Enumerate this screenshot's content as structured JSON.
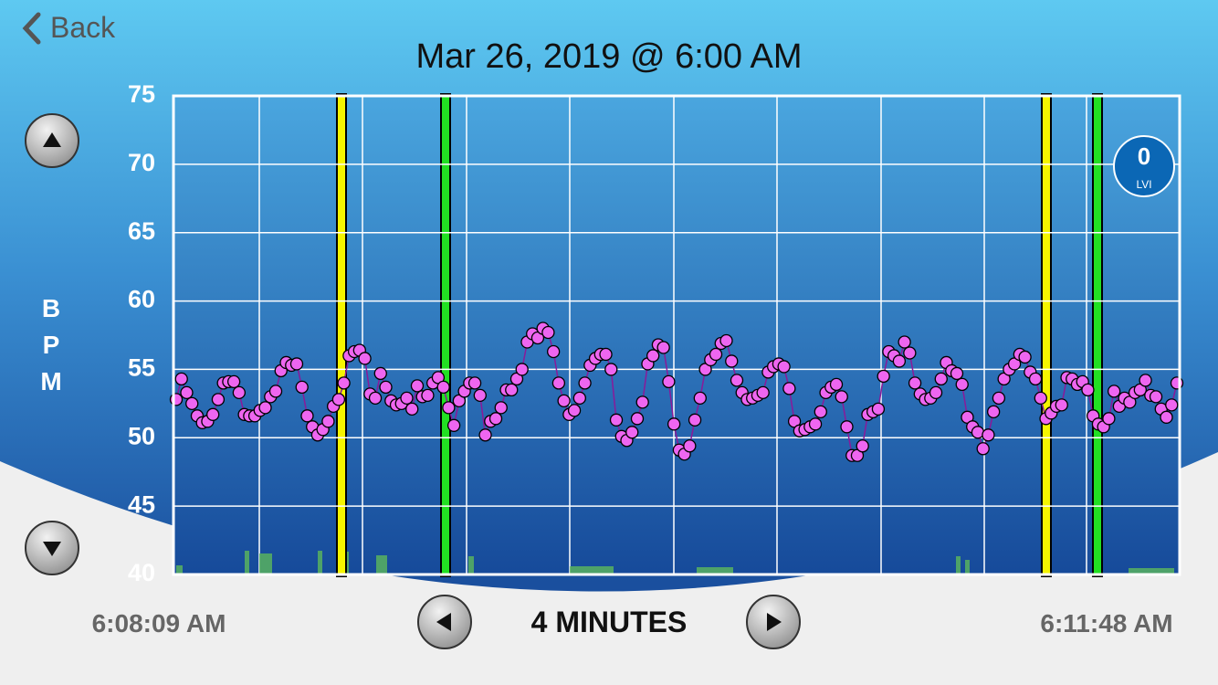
{
  "header": {
    "back": "Back",
    "title": "Mar 26, 2019 @ 6:00 AM"
  },
  "badge": {
    "value": 0,
    "label": "LVI"
  },
  "footer": {
    "start": "6:08:09 AM",
    "range": "4 MINUTES",
    "end": "6:11:48 AM"
  },
  "chart_data": {
    "type": "line",
    "ylabel": "BPM",
    "ylim": [
      40,
      75
    ],
    "yticks": [
      40,
      45,
      50,
      55,
      60,
      65,
      70,
      75
    ],
    "grid": true,
    "color": "#8a1a9a",
    "marker_color": "#ee66f0",
    "categories": [
      null,
      null,
      null,
      null,
      null,
      null,
      null,
      null,
      null,
      null,
      null,
      null,
      null,
      null,
      null,
      null,
      null,
      null,
      null,
      null,
      null,
      null,
      null,
      null,
      null,
      null,
      null,
      null,
      null,
      null,
      null,
      null,
      null,
      null,
      null,
      null,
      null,
      null,
      null,
      null,
      null,
      null,
      null,
      null,
      null,
      null,
      null,
      null,
      null,
      null,
      null,
      null,
      null,
      null,
      null,
      null,
      null,
      null,
      null,
      null,
      null,
      null,
      null,
      null,
      null,
      null,
      null,
      null,
      null,
      null,
      null,
      null,
      null,
      null,
      null,
      null,
      null,
      null,
      null,
      null,
      null,
      null,
      null,
      null,
      null,
      null,
      null,
      null,
      null,
      null,
      null,
      null,
      null,
      null,
      null,
      null,
      null,
      null,
      null,
      null,
      null,
      null,
      null,
      null,
      null,
      null,
      null,
      null,
      null,
      null,
      null,
      null,
      null,
      null,
      null,
      null,
      null,
      null,
      null,
      null,
      null,
      null,
      null,
      null,
      null,
      null,
      null,
      null,
      null,
      null,
      null,
      null,
      null,
      null,
      null,
      null,
      null,
      null,
      null,
      null,
      null,
      null,
      null,
      null,
      null,
      null,
      null,
      null,
      null,
      null,
      null,
      null,
      null,
      null,
      null,
      null,
      null,
      null,
      null,
      null,
      null,
      null,
      null,
      null,
      null,
      null,
      null,
      null,
      null,
      null,
      null,
      null,
      null,
      null,
      null,
      null,
      null,
      null,
      null,
      null,
      null,
      null,
      null,
      null,
      null,
      null,
      null,
      null,
      null,
      null,
      null,
      null
    ],
    "values": [
      52.8,
      54.3,
      53.3,
      52.5,
      51.6,
      51.1,
      51.2,
      51.7,
      52.8,
      54.0,
      54.1,
      54.1,
      53.3,
      51.7,
      51.6,
      51.6,
      52.0,
      52.2,
      53.0,
      53.4,
      54.9,
      55.5,
      55.3,
      55.4,
      53.7,
      51.6,
      50.8,
      50.2,
      50.6,
      51.2,
      52.3,
      52.8,
      54.0,
      56.0,
      56.3,
      56.4,
      55.8,
      53.2,
      52.9,
      54.7,
      53.7,
      52.7,
      52.4,
      52.5,
      52.9,
      52.1,
      53.8,
      53.0,
      53.1,
      54.0,
      54.4,
      53.7,
      52.2,
      50.9,
      52.7,
      53.4,
      54.0,
      54.0,
      53.1,
      50.2,
      51.2,
      51.4,
      52.2,
      53.5,
      53.5,
      54.3,
      55.0,
      57.0,
      57.6,
      57.3,
      58.0,
      57.7,
      56.3,
      54.0,
      52.7,
      51.7,
      52.0,
      52.9,
      54.0,
      55.3,
      55.8,
      56.1,
      56.1,
      55.0,
      51.3,
      50.1,
      49.8,
      50.4,
      51.4,
      52.6,
      55.4,
      56.0,
      56.8,
      56.6,
      54.1,
      51.0,
      49.1,
      48.8,
      49.4,
      51.3,
      52.9,
      55.0,
      55.7,
      56.1,
      56.9,
      57.1,
      55.6,
      54.2,
      53.3,
      52.8,
      52.9,
      53.1,
      53.3,
      54.8,
      55.2,
      55.4,
      55.2,
      53.6,
      51.2,
      50.5,
      50.6,
      50.8,
      51.0,
      51.9,
      53.3,
      53.7,
      53.9,
      53.0,
      50.8,
      48.7,
      48.7,
      49.4,
      51.7,
      51.9,
      52.1,
      54.5,
      56.3,
      56.0,
      55.6,
      57.0,
      56.2,
      54.0,
      53.2,
      52.8,
      52.9,
      53.3,
      54.3,
      55.5,
      54.9,
      54.7,
      53.9,
      51.5,
      50.8,
      50.4,
      49.2,
      50.2,
      51.9,
      52.9,
      54.3,
      55.0,
      55.4,
      56.1,
      55.9,
      54.8,
      54.3,
      52.9,
      51.4,
      51.8,
      52.3,
      52.4,
      54.4,
      54.3,
      53.9,
      54.1,
      53.5,
      51.6,
      51.0,
      50.8,
      51.4,
      53.4,
      52.3,
      52.9,
      52.6,
      53.3,
      53.5,
      54.2,
      53.1,
      53.0,
      52.1,
      51.5,
      52.4,
      54.0
    ]
  }
}
